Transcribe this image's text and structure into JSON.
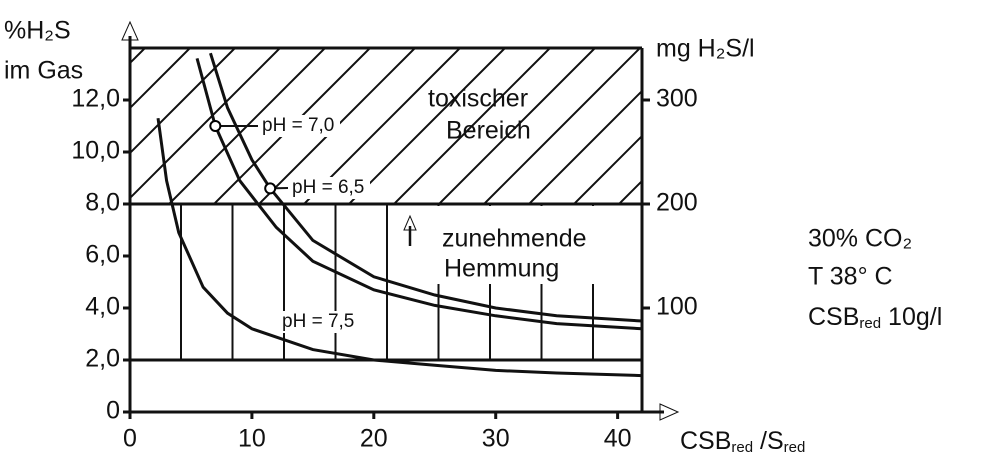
{
  "chart_data": {
    "type": "line",
    "y_label": [
      "%H₂S",
      "im Gas"
    ],
    "y2_label": "mg H₂S/l",
    "x_label": [
      "CSB",
      "red",
      " /S",
      "red"
    ],
    "annotations": {
      "toxic": [
        "toxischer",
        "Bereich"
      ],
      "inhibition": [
        "zunehmende",
        "Hemmung"
      ],
      "conditions": [
        "30% CO₂",
        "T  38° C"
      ],
      "cod": [
        "CSB",
        "red",
        " 10g/l"
      ]
    },
    "xlim": [
      0,
      42
    ],
    "xticks": [
      0,
      10,
      20,
      30,
      40
    ],
    "ylim": [
      0,
      14
    ],
    "yticks": [
      0,
      {
        "value": 2,
        "label": "2,0"
      },
      {
        "value": 4,
        "label": "4,0"
      },
      {
        "value": 6,
        "label": "6,0"
      },
      {
        "value": 8,
        "label": "8,0"
      },
      {
        "value": 10,
        "label": "10,0"
      },
      {
        "value": 12,
        "label": "12,0"
      }
    ],
    "y2lim": [
      0,
      350
    ],
    "y2ticks": [
      100,
      200,
      300
    ],
    "series": [
      {
        "name": "pH = 7,0",
        "color": "#000000",
        "x": [
          5.5,
          7,
          9,
          12,
          15,
          20,
          25,
          30,
          35,
          42
        ],
        "values": [
          13.6,
          11.0,
          8.9,
          7.1,
          5.8,
          4.7,
          4.1,
          3.7,
          3.4,
          3.2
        ]
      },
      {
        "name": "pH = 6,5",
        "color": "#000000",
        "x": [
          6.6,
          8,
          10,
          11.5,
          15,
          20,
          25,
          30,
          35,
          42
        ],
        "values": [
          13.8,
          11.7,
          9.7,
          8.6,
          6.6,
          5.2,
          4.5,
          4.0,
          3.7,
          3.5
        ]
      },
      {
        "name": "pH = 7,5",
        "color": "#000000",
        "x": [
          2.3,
          3,
          4,
          6,
          8,
          10,
          15,
          20,
          25,
          30,
          35,
          42
        ],
        "values": [
          11.3,
          8.9,
          6.9,
          4.8,
          3.8,
          3.2,
          2.4,
          2.0,
          1.8,
          1.6,
          1.5,
          1.4
        ]
      }
    ]
  }
}
